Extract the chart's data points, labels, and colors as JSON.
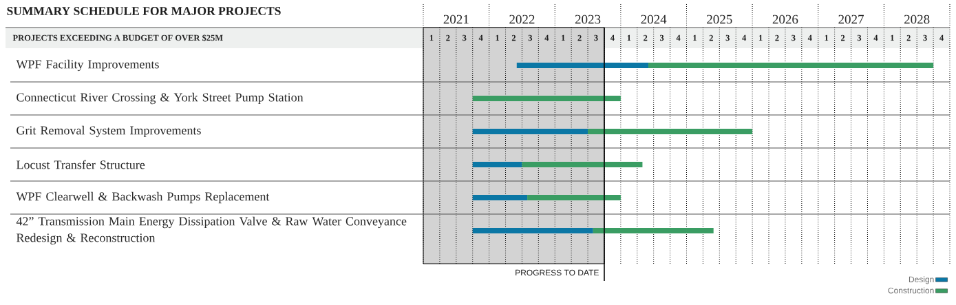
{
  "chart_data": {
    "type": "bar",
    "orientation": "horizontal",
    "title": "SUMMARY SCHEDULE FOR MAJOR PROJECTS",
    "subtitle": "PROJECTS EXCEEDING A BUDGET OF OVER $25M",
    "categories": [
      "WPF Facility Improvements",
      "Connecticut River Crossing & York Street Pump Station",
      "Grit Removal System Improvements",
      "Locust Transfer Structure",
      "WPF Clearwell & Backwash Pumps Replacement",
      "42” Transmission Main Energy Dissipation Valve & Raw Water Conveyance Redesign & Reconstruction"
    ],
    "series": [
      {
        "name": "Design",
        "color": "#0b77a5",
        "base": [
          2022.42,
          null,
          2021.75,
          2021.75,
          2021.75,
          2021.75
        ],
        "values": [
          2.0,
          null,
          1.75,
          0.75,
          0.83,
          1.83
        ]
      },
      {
        "name": "Construction",
        "color": "#3a9d63",
        "base": [
          2024.42,
          2021.75,
          2023.5,
          2022.5,
          2022.58,
          2023.58
        ],
        "values": [
          4.33,
          2.25,
          2.5,
          1.83,
          1.42,
          1.83
        ]
      }
    ],
    "xlim": [
      2021,
      2029
    ],
    "xticks": [
      {
        "value": 2021,
        "label": null
      },
      {
        "value": 2021.25,
        "label": null
      },
      {
        "value": 2021.5,
        "label": null
      },
      {
        "value": 2021.75,
        "label": null
      },
      {
        "value": 2022,
        "label": null
      },
      {
        "value": 2022.25,
        "label": null
      },
      {
        "value": 2022.5,
        "label": null
      },
      {
        "value": 2022.75,
        "label": null
      },
      {
        "value": 2023,
        "label": null
      },
      {
        "value": 2023.25,
        "label": null
      },
      {
        "value": 2023.5,
        "label": null
      },
      {
        "value": 2023.75,
        "label": null
      },
      {
        "value": 2024,
        "label": null
      },
      {
        "value": 2024.25,
        "label": null
      },
      {
        "value": 2024.5,
        "label": null
      },
      {
        "value": 2024.75,
        "label": null
      },
      {
        "value": 2025,
        "label": null
      },
      {
        "value": 2025.25,
        "label": null
      },
      {
        "value": 2025.5,
        "label": null
      },
      {
        "value": 2025.75,
        "label": null
      },
      {
        "value": 2026,
        "label": null
      },
      {
        "value": 2026.25,
        "label": null
      },
      {
        "value": 2026.5,
        "label": null
      },
      {
        "value": 2026.75,
        "label": null
      },
      {
        "value": 2027,
        "label": null
      },
      {
        "value": 2027.25,
        "label": null
      },
      {
        "value": 2027.5,
        "label": null
      },
      {
        "value": 2027.75,
        "label": null
      },
      {
        "value": 2028,
        "label": null
      },
      {
        "value": 2028.25,
        "label": null
      },
      {
        "value": 2028.5,
        "label": null
      },
      {
        "value": 2028.75,
        "label": null
      },
      {
        "value": 2029,
        "label": null
      },
      {
        "value": 2021.5,
        "label": "2021"
      },
      {
        "value": 2022.5,
        "label": "2022"
      },
      {
        "value": 2023.5,
        "label": "2023"
      },
      {
        "value": 2024.5,
        "label": "2024"
      },
      {
        "value": 2025.5,
        "label": "2025"
      },
      {
        "value": 2026.5,
        "label": "2026"
      },
      {
        "value": 2027.5,
        "label": "2027"
      },
      {
        "value": 2028.5,
        "label": "2028"
      }
    ],
    "annotations": [
      "1",
      "2",
      "3",
      "4",
      "1",
      "2",
      "3",
      "4",
      "1",
      "2",
      "3",
      "4",
      "1",
      "2",
      "3",
      "4",
      "1",
      "2",
      "3",
      "4",
      "1",
      "2",
      "3",
      "4",
      "1",
      "2",
      "3",
      "4",
      "1",
      "2",
      "3",
      "4"
    ],
    "grid": true,
    "legend": "bottom right",
    "bands": [
      {
        "axis": "x",
        "from": 2021,
        "to": 2023.75,
        "color": "#d3d3d3"
      }
    ],
    "ref_lines": [
      {
        "axis": "x",
        "value": 2023.75,
        "label": "PROGRESS TO DATE"
      }
    ]
  }
}
